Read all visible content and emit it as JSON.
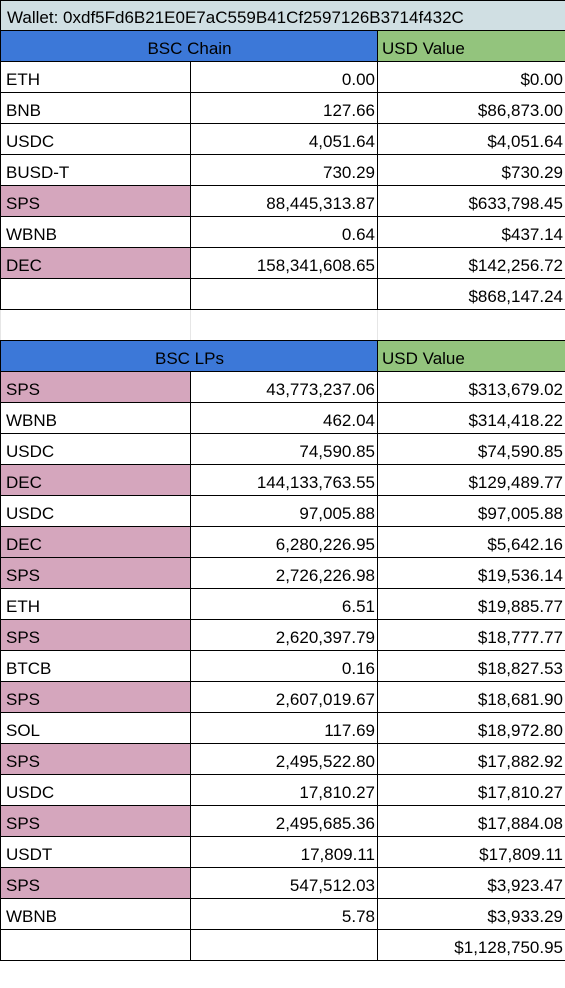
{
  "wallet": {
    "label": "Wallet: 0xdf5Fd6B21E0E7aC559B41Cf2597126B3714f432C"
  },
  "colors": {
    "wallet_bg": "#d0dfe3",
    "chain_header": "#3c78d8",
    "usd_header": "#93c47d",
    "highlight": "#d5a6bd"
  },
  "chain": {
    "header": "BSC Chain",
    "usd_header": "USD Value",
    "rows": [
      {
        "token": "ETH",
        "amount": "0.00",
        "usd": "$0.00",
        "highlight": false
      },
      {
        "token": "BNB",
        "amount": "127.66",
        "usd": "$86,873.00",
        "highlight": false
      },
      {
        "token": "USDC",
        "amount": "4,051.64",
        "usd": "$4,051.64",
        "highlight": false
      },
      {
        "token": "BUSD-T",
        "amount": "730.29",
        "usd": "$730.29",
        "highlight": false
      },
      {
        "token": "SPS",
        "amount": "88,445,313.87",
        "usd": "$633,798.45",
        "highlight": true
      },
      {
        "token": "WBNB",
        "amount": "0.64",
        "usd": "$437.14",
        "highlight": false
      },
      {
        "token": "DEC",
        "amount": "158,341,608.65",
        "usd": "$142,256.72",
        "highlight": true
      }
    ],
    "total": "$868,147.24"
  },
  "lps": {
    "header": "BSC LPs",
    "usd_header": "USD Value",
    "rows": [
      {
        "token": "SPS",
        "amount": "43,773,237.06",
        "usd": "$313,679.02",
        "highlight": true
      },
      {
        "token": "WBNB",
        "amount": "462.04",
        "usd": "$314,418.22",
        "highlight": false
      },
      {
        "token": "USDC",
        "amount": "74,590.85",
        "usd": "$74,590.85",
        "highlight": false
      },
      {
        "token": "DEC",
        "amount": "144,133,763.55",
        "usd": "$129,489.77",
        "highlight": true
      },
      {
        "token": "USDC",
        "amount": "97,005.88",
        "usd": "$97,005.88",
        "highlight": false
      },
      {
        "token": "DEC",
        "amount": "6,280,226.95",
        "usd": "$5,642.16",
        "highlight": true
      },
      {
        "token": "SPS",
        "amount": "2,726,226.98",
        "usd": "$19,536.14",
        "highlight": true
      },
      {
        "token": "ETH",
        "amount": "6.51",
        "usd": "$19,885.77",
        "highlight": false
      },
      {
        "token": "SPS",
        "amount": "2,620,397.79",
        "usd": "$18,777.77",
        "highlight": true
      },
      {
        "token": "BTCB",
        "amount": "0.16",
        "usd": "$18,827.53",
        "highlight": false
      },
      {
        "token": "SPS",
        "amount": "2,607,019.67",
        "usd": "$18,681.90",
        "highlight": true
      },
      {
        "token": "SOL",
        "amount": "117.69",
        "usd": "$18,972.80",
        "highlight": false
      },
      {
        "token": "SPS",
        "amount": "2,495,522.80",
        "usd": "$17,882.92",
        "highlight": true
      },
      {
        "token": "USDC",
        "amount": "17,810.27",
        "usd": "$17,810.27",
        "highlight": false
      },
      {
        "token": "SPS",
        "amount": "2,495,685.36",
        "usd": "$17,884.08",
        "highlight": true
      },
      {
        "token": "USDT",
        "amount": "17,809.11",
        "usd": "$17,809.11",
        "highlight": false
      },
      {
        "token": "SPS",
        "amount": "547,512.03",
        "usd": "$3,923.47",
        "highlight": true
      },
      {
        "token": "WBNB",
        "amount": "5.78",
        "usd": "$3,933.29",
        "highlight": false
      }
    ],
    "total": "$1,128,750.95"
  }
}
